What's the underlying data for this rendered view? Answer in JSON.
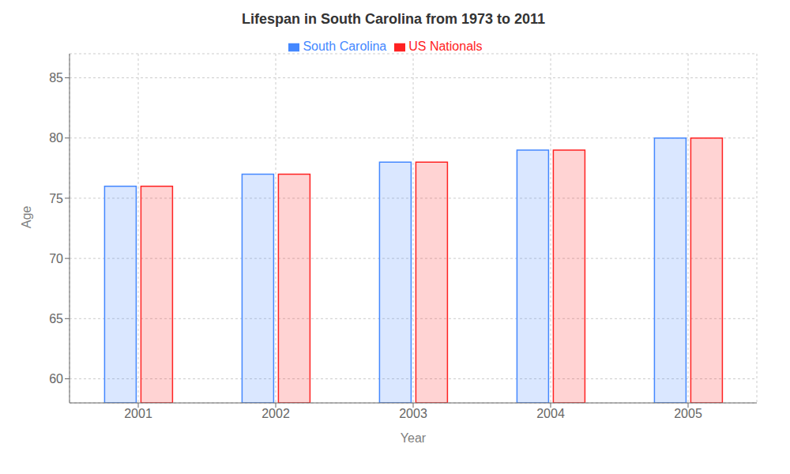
{
  "chart_data": {
    "type": "bar",
    "title": "Lifespan in South Carolina from 1973 to 2011",
    "x_label": "Year",
    "y_label": "Age",
    "categories": [
      "2001",
      "2002",
      "2003",
      "2004",
      "2005"
    ],
    "series": [
      {
        "name": "South Carolina",
        "color": "#4488ff",
        "values": [
          76,
          77,
          78,
          79,
          80
        ]
      },
      {
        "name": "US Nationals",
        "color": "#ff2222",
        "values": [
          76,
          77,
          78,
          79,
          80
        ]
      }
    ],
    "ylim": [
      58,
      87
    ],
    "yticks": [
      60,
      65,
      70,
      75,
      80,
      85
    ],
    "grid": true,
    "legend": "top"
  }
}
